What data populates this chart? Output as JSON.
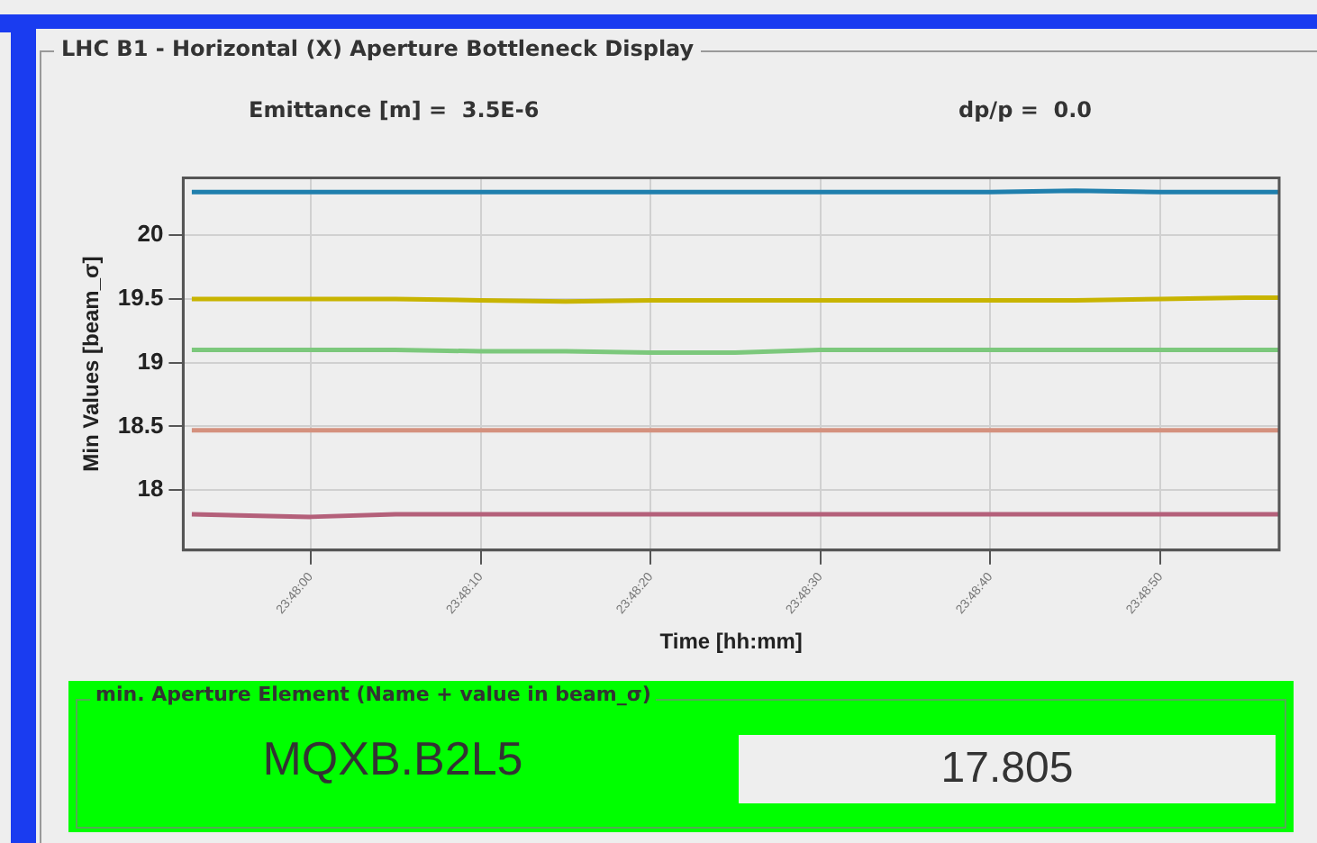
{
  "chart_data": {
    "type": "line",
    "title": "LHC B1 - Horizontal (X) Aperture Bottleneck Display",
    "xlabel": "Time [hh:mm]",
    "ylabel": "Min Values [beam_σ]",
    "annotations": [
      "Emittance [m] =  3.5E-6",
      "dp/p =  0.0",
      "min. Aperture Element (Name + value in beam_σ)",
      "MQXB.B2L5",
      "17.805"
    ],
    "x": [
      23.79806,
      23.8,
      23.80139,
      23.80278,
      23.80417,
      23.80556,
      23.80694,
      23.80833,
      23.80972,
      23.81111,
      23.8125,
      23.81389,
      23.81528,
      23.81583
    ],
    "series": [
      {
        "color": "#1f7fad",
        "values": [
          20.34,
          20.34,
          20.34,
          20.34,
          20.34,
          20.34,
          20.34,
          20.34,
          20.34,
          20.34,
          20.35,
          20.34,
          20.34,
          20.34
        ]
      },
      {
        "color": "#c8b400",
        "values": [
          19.5,
          19.5,
          19.5,
          19.49,
          19.48,
          19.49,
          19.49,
          19.49,
          19.49,
          19.49,
          19.49,
          19.5,
          19.51,
          19.51
        ]
      },
      {
        "color": "#7cc87c",
        "values": [
          19.1,
          19.1,
          19.1,
          19.09,
          19.09,
          19.08,
          19.08,
          19.1,
          19.1,
          19.1,
          19.1,
          19.1,
          19.1,
          19.1
        ]
      },
      {
        "color": "#d4917e",
        "values": [
          18.47,
          18.47,
          18.47,
          18.47,
          18.47,
          18.47,
          18.47,
          18.47,
          18.47,
          18.47,
          18.47,
          18.47,
          18.47,
          18.47
        ]
      },
      {
        "color": "#b4607a",
        "values": [
          17.81,
          17.79,
          17.81,
          17.81,
          17.81,
          17.81,
          17.81,
          17.81,
          17.81,
          17.81,
          17.81,
          17.81,
          17.81,
          17.81
        ]
      }
    ],
    "xlim": [
      23.79792,
      23.81583
    ],
    "xticks": [
      {
        "value": 23.8,
        "label": "23:48:00"
      },
      {
        "value": 23.80278,
        "label": "23:48:10"
      },
      {
        "value": 23.80556,
        "label": "23:48:20"
      },
      {
        "value": 23.80833,
        "label": "23:48:30"
      },
      {
        "value": 23.81111,
        "label": "23:48:40"
      },
      {
        "value": 23.81389,
        "label": "23:48:50"
      }
    ],
    "ylim": [
      17.53,
      20.45
    ],
    "yticks": [
      18,
      18.5,
      19,
      19.5,
      20
    ],
    "grid": true,
    "legend": false,
    "marker": "none",
    "line_style": "solid"
  }
}
